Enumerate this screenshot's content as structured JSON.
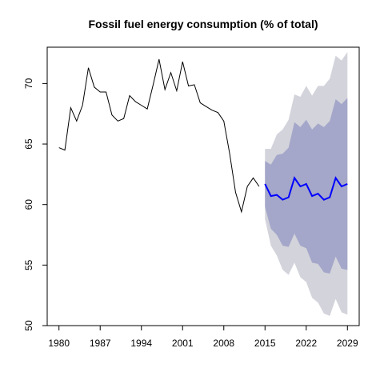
{
  "chart_data": {
    "type": "line",
    "title": "Fossil fuel energy consumption (% of total)",
    "xlabel": "",
    "ylabel": "",
    "xlim": [
      1978,
      2031
    ],
    "ylim": [
      50,
      73
    ],
    "x_ticks": [
      1980,
      1987,
      1994,
      2001,
      2008,
      2015,
      2022,
      2029
    ],
    "y_ticks": [
      50,
      55,
      60,
      65,
      70
    ],
    "grid": false,
    "legend": "none",
    "historical": {
      "x": [
        1980,
        1981,
        1982,
        1983,
        1984,
        1985,
        1986,
        1987,
        1988,
        1989,
        1990,
        1991,
        1992,
        1993,
        1994,
        1995,
        1996,
        1997,
        1998,
        1999,
        2000,
        2001,
        2002,
        2003,
        2004,
        2005,
        2006,
        2007,
        2008,
        2009,
        2010,
        2011,
        2012,
        2013,
        2014
      ],
      "y": [
        64.7,
        64.5,
        68.0,
        66.9,
        68.2,
        71.3,
        69.7,
        69.3,
        69.3,
        67.4,
        66.9,
        67.1,
        69.0,
        68.5,
        68.2,
        67.9,
        69.9,
        72.0,
        69.5,
        70.9,
        69.4,
        71.8,
        69.8,
        69.9,
        68.4,
        68.1,
        67.8,
        67.6,
        66.9,
        64.2,
        61.0,
        59.4,
        61.5,
        62.2,
        61.5
      ]
    },
    "forecast": {
      "x": [
        2015,
        2016,
        2017,
        2018,
        2019,
        2020,
        2021,
        2022,
        2023,
        2024,
        2025,
        2026,
        2027,
        2028,
        2029
      ],
      "mean": [
        61.7,
        60.7,
        60.8,
        60.4,
        60.6,
        62.2,
        61.5,
        61.7,
        60.7,
        60.9,
        60.4,
        60.6,
        62.2,
        61.5,
        61.7
      ],
      "lo80": [
        59.8,
        58.0,
        57.5,
        56.6,
        56.5,
        57.6,
        56.6,
        56.4,
        55.2,
        55.1,
        54.4,
        54.3,
        55.7,
        54.7,
        54.6
      ],
      "hi80": [
        63.6,
        63.3,
        64.1,
        64.2,
        64.7,
        66.8,
        66.4,
        67.0,
        66.2,
        66.7,
        66.4,
        66.9,
        68.7,
        68.3,
        68.8
      ],
      "lo95": [
        58.8,
        56.6,
        55.8,
        54.6,
        54.2,
        55.2,
        54.0,
        53.6,
        52.3,
        51.9,
        51.0,
        50.8,
        52.2,
        51.1,
        50.9
      ],
      "hi95": [
        64.6,
        64.6,
        65.8,
        66.2,
        67.0,
        69.1,
        68.9,
        69.8,
        69.0,
        69.8,
        69.8,
        70.4,
        72.3,
        71.9,
        72.6
      ]
    },
    "colors": {
      "historical": "#000000",
      "forecast_mean": "#0000ff",
      "band_95": "#d3d3db",
      "band_80": "#a4a7c9"
    }
  }
}
